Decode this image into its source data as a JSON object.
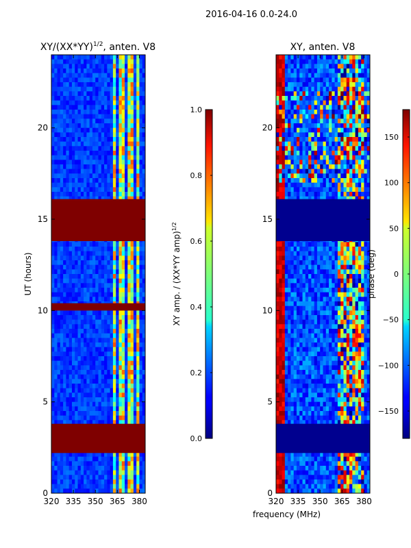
{
  "figure": {
    "suptitle": "2016-04-16 0.0-24.0",
    "xlabel": "frequency (MHz)"
  },
  "chart_data": [
    {
      "type": "heatmap",
      "title_main": "XY/(XX*YY)",
      "title_sup": "1/2",
      "title_rest": ", anten. V8",
      "ylabel": "UT (hours)",
      "xlim": [
        320,
        384
      ],
      "ylim": [
        0,
        24
      ],
      "xticks": [
        320,
        335,
        350,
        365,
        380
      ],
      "yticks": [
        0,
        5,
        10,
        15,
        20
      ],
      "colorbar": {
        "label_main": "XY amp. / (XX*YY amp)",
        "label_sup": "1/2",
        "range": [
          0.0,
          1.0
        ],
        "ticks": [
          "0.0",
          "0.2",
          "0.4",
          "0.6",
          "0.8",
          "1.0"
        ],
        "tick_values": [
          0.0,
          0.2,
          0.4,
          0.6,
          0.8,
          1.0
        ],
        "ticks_bold": false
      },
      "saturated_bands_hours": [
        [
          2.2,
          3.8
        ],
        [
          10.0,
          10.4
        ],
        [
          13.8,
          16.1
        ]
      ],
      "bright_channel_range_mhz": [
        361,
        381
      ]
    },
    {
      "type": "heatmap",
      "title_main": "XY, anten. V8",
      "title_sup": "",
      "title_rest": "",
      "ylabel": "",
      "xlim": [
        320,
        384
      ],
      "ylim": [
        0,
        24
      ],
      "xticks": [
        320,
        335,
        350,
        365,
        380
      ],
      "yticks": [
        0,
        5,
        10,
        15,
        20
      ],
      "colorbar": {
        "label_main": "phase (deg)",
        "label_sup": "",
        "range": [
          -180,
          180
        ],
        "ticks": [
          "−150",
          "−100",
          "−50",
          "0",
          "50",
          "100",
          "150"
        ],
        "tick_values": [
          -150,
          -100,
          -50,
          0,
          50,
          100,
          150
        ],
        "ticks_bold": false
      },
      "flat_bands_hours": [
        [
          2.2,
          3.8
        ],
        [
          13.8,
          16.1
        ]
      ],
      "bright_channel_range_mhz": [
        361,
        381
      ]
    }
  ]
}
